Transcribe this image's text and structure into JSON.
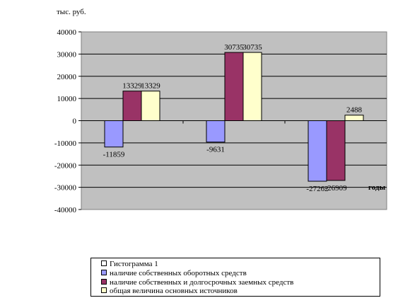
{
  "chart_data": {
    "type": "bar",
    "ylabel": "тыс. руб.",
    "xlabel": "годы",
    "ylim": [
      -40000,
      40000
    ],
    "yticks": [
      40000,
      30000,
      20000,
      10000,
      0,
      -10000,
      -20000,
      -30000,
      -40000
    ],
    "grid": true,
    "legend_position": "bottom",
    "categories": [
      "",
      "",
      ""
    ],
    "series": [
      {
        "name": "наличие собственных оборотных средств",
        "values": [
          -11859,
          -9631,
          -27262
        ],
        "color": "#9999ff"
      },
      {
        "name": "наличие собственных и долгосрочных заемных средств",
        "values": [
          13329,
          30735,
          -26909
        ],
        "color": "#993366"
      },
      {
        "name": "общая величина основных источников",
        "values": [
          13329,
          30735,
          2488
        ],
        "color": "#ffffcc"
      }
    ],
    "data_labels": [
      [
        "-11859",
        "-9631",
        "-27262"
      ],
      [
        "13329",
        "30735",
        "-26909"
      ],
      [
        "13329",
        "30735",
        "2488"
      ]
    ],
    "plot_area_color": "#c0c0c0"
  },
  "legend": {
    "items": [
      {
        "label": "Гистограмма 1",
        "color": "#ffffff"
      },
      {
        "label": "наличие собственных оборотных средств",
        "color": "#9999ff"
      },
      {
        "label": "наличие собственных и долгосрочных заемных средств",
        "color": "#993366"
      },
      {
        "label": "общая величина основных источников",
        "color": "#ffffcc"
      }
    ]
  }
}
